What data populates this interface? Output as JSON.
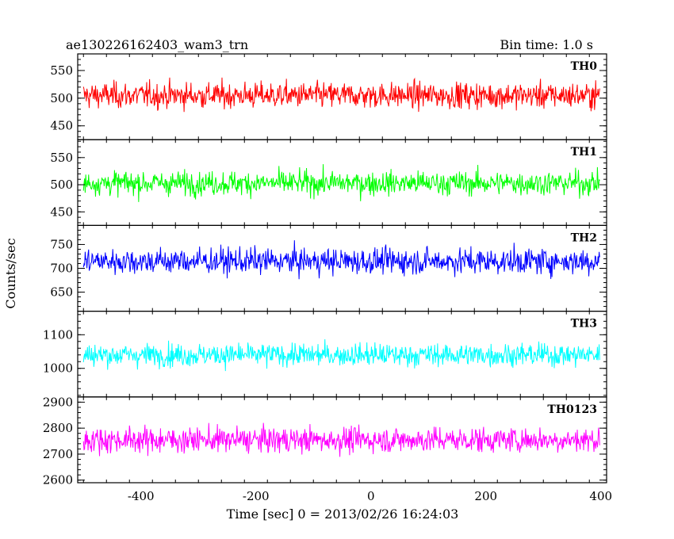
{
  "header": {
    "left": "ae130226162403_wam3_trn",
    "right": "Bin time: 1.0 s"
  },
  "chart_data": {
    "type": "line",
    "xlabel": "Time [sec] 0 = 2013/02/26 16:24:03",
    "ylabel": "Counts/sec",
    "xlim": [
      -510,
      410
    ],
    "x_range": [
      -500,
      398
    ],
    "x_step": 1.0,
    "xticks": [
      -400,
      -200,
      0,
      200,
      400
    ],
    "grid": false,
    "panels": [
      {
        "name": "TH0",
        "color": "#ff0000",
        "ylim": [
          425,
          580
        ],
        "yticks": [
          450,
          500,
          550
        ],
        "mean": 505,
        "amplitude": 36
      },
      {
        "name": "TH1",
        "color": "#00ff00",
        "ylim": [
          425,
          583
        ],
        "yticks": [
          450,
          500,
          550
        ],
        "mean": 503,
        "amplitude": 34
      },
      {
        "name": "TH2",
        "color": "#0000ff",
        "ylim": [
          610,
          790
        ],
        "yticks": [
          650,
          700,
          750
        ],
        "mean": 715,
        "amplitude": 42
      },
      {
        "name": "TH3",
        "color": "#00ffff",
        "ylim": [
          915,
          1170
        ],
        "yticks": [
          1000,
          1100
        ],
        "mean": 1040,
        "amplitude": 52
      },
      {
        "name": "TH0123",
        "color": "#ff00ff",
        "ylim": [
          2590,
          2920
        ],
        "yticks": [
          2600,
          2700,
          2800,
          2900
        ],
        "mean": 2755,
        "amplitude": 75
      }
    ]
  }
}
